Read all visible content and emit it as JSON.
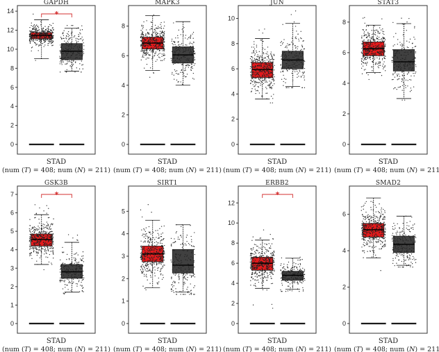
{
  "colors": {
    "tumor": "#e31a1c",
    "normal": "#404040",
    "signif": "#d32f2f",
    "points": "#222222"
  },
  "chart_data": [
    {
      "type": "box",
      "title": "GAPDH",
      "ylim": [
        0,
        14.3
      ],
      "yticks": [
        "0",
        "2",
        "4",
        "6",
        "8",
        "10",
        "12",
        "14"
      ],
      "significant": true,
      "significance_label": "*",
      "tumor": {
        "min": 9.0,
        "q1": 11.1,
        "median": 11.45,
        "q3": 11.75,
        "max": 13.1,
        "spread_min": 8.8,
        "spread_max": 14.0
      },
      "normal": {
        "min": 7.7,
        "q1": 8.9,
        "median": 9.8,
        "q3": 10.6,
        "max": 12.2,
        "spread_min": 7.6,
        "spread_max": 12.5
      },
      "xlabel": "STAD",
      "sublabel": [
        "(num (",
        "T",
        ") = 408; num (",
        "N",
        ") = 211)"
      ]
    },
    {
      "type": "box",
      "title": "MAPK3",
      "ylim": [
        0,
        9.2
      ],
      "yticks": [
        "0",
        "2",
        "4",
        "6",
        "8"
      ],
      "significant": false,
      "significance_label": "",
      "tumor": {
        "min": 5.0,
        "q1": 6.45,
        "median": 6.85,
        "q3": 7.25,
        "max": 8.7,
        "spread_min": 4.4,
        "spread_max": 9.0
      },
      "normal": {
        "min": 4.0,
        "q1": 5.5,
        "median": 6.05,
        "q3": 6.6,
        "max": 8.3,
        "spread_min": 3.9,
        "spread_max": 8.6
      },
      "xlabel": "STAD",
      "sublabel": [
        "(num (",
        "T",
        ") = 408; num (",
        "N",
        ") = 211)"
      ]
    },
    {
      "type": "box",
      "title": "JUN",
      "ylim": [
        0,
        10.8
      ],
      "yticks": [
        "0",
        "2",
        "4",
        "6",
        "8",
        "10"
      ],
      "significant": false,
      "significance_label": "",
      "tumor": {
        "min": 3.6,
        "q1": 5.3,
        "median": 5.95,
        "q3": 6.5,
        "max": 8.4,
        "spread_min": 3.3,
        "spread_max": 9.4
      },
      "normal": {
        "min": 4.6,
        "q1": 6.0,
        "median": 6.7,
        "q3": 7.4,
        "max": 9.6,
        "spread_min": 4.5,
        "spread_max": 10.6
      },
      "xlabel": "STAD",
      "sublabel": [
        "(num (",
        "T",
        ") = 408; num (",
        "N",
        ") = 211)"
      ]
    },
    {
      "type": "box",
      "title": "STAT3",
      "ylim": [
        0,
        8.9
      ],
      "yticks": [
        "0",
        "2",
        "4",
        "6",
        "8"
      ],
      "significant": false,
      "significance_label": "",
      "tumor": {
        "min": 4.7,
        "q1": 5.8,
        "median": 6.25,
        "q3": 6.7,
        "max": 7.8,
        "spread_min": 3.8,
        "spread_max": 8.5
      },
      "normal": {
        "min": 3.0,
        "q1": 4.8,
        "median": 5.4,
        "q3": 6.2,
        "max": 7.9,
        "spread_min": 2.9,
        "spread_max": 8.5
      },
      "xlabel": "STAD",
      "sublabel": [
        "(num (",
        "T",
        ") = 408; num (",
        "N",
        ") = 211)"
      ]
    },
    {
      "type": "box",
      "title": "GSK3B",
      "ylim": [
        0,
        7.3
      ],
      "yticks": [
        "0",
        "1",
        "2",
        "3",
        "4",
        "5",
        "6",
        "7"
      ],
      "significant": true,
      "significance_label": "*",
      "tumor": {
        "min": 3.2,
        "q1": 4.2,
        "median": 4.55,
        "q3": 4.85,
        "max": 5.9,
        "spread_min": 2.9,
        "spread_max": 6.6
      },
      "normal": {
        "min": 1.7,
        "q1": 2.45,
        "median": 2.8,
        "q3": 3.2,
        "max": 4.4,
        "spread_min": 1.6,
        "spread_max": 5.2
      },
      "xlabel": "STAD",
      "sublabel": [
        "(num (",
        "T",
        ") = 408; num (",
        "N",
        ") = 211)"
      ]
    },
    {
      "type": "box",
      "title": "SIRT1",
      "ylim": [
        0,
        6.0
      ],
      "yticks": [
        "0",
        "1",
        "2",
        "3",
        "4",
        "5"
      ],
      "significant": false,
      "significance_label": "",
      "tumor": {
        "min": 1.6,
        "q1": 2.75,
        "median": 3.1,
        "q3": 3.45,
        "max": 4.6,
        "spread_min": 1.5,
        "spread_max": 5.5
      },
      "normal": {
        "min": 1.4,
        "q1": 2.25,
        "median": 2.6,
        "q3": 3.3,
        "max": 4.4,
        "spread_min": 1.3,
        "spread_max": 4.4
      },
      "xlabel": "STAD",
      "sublabel": [
        "(num (",
        "T",
        ") = 408; num (",
        "N",
        ") = 211)"
      ]
    },
    {
      "type": "box",
      "title": "ERBB2",
      "ylim": [
        0,
        13.4
      ],
      "yticks": [
        "0",
        "2",
        "4",
        "6",
        "8",
        "10",
        "12"
      ],
      "significant": true,
      "significance_label": "*",
      "tumor": {
        "min": 3.5,
        "q1": 5.3,
        "median": 6.0,
        "q3": 6.6,
        "max": 8.3,
        "spread_min": 1.4,
        "spread_max": 13.0
      },
      "normal": {
        "min": 3.4,
        "q1": 4.3,
        "median": 4.8,
        "q3": 5.2,
        "max": 6.5,
        "spread_min": 3.2,
        "spread_max": 6.6
      },
      "xlabel": "STAD",
      "sublabel": [
        "(num (",
        "T",
        ") = 408; num (",
        "N",
        ") = 211)"
      ]
    },
    {
      "type": "box",
      "title": "SMAD2",
      "ylim": [
        0,
        7.4
      ],
      "yticks": [
        "0",
        "2",
        "4",
        "6"
      ],
      "significant": false,
      "significance_label": "",
      "tumor": {
        "min": 3.6,
        "q1": 4.75,
        "median": 5.15,
        "q3": 5.5,
        "max": 6.9,
        "spread_min": 2.8,
        "spread_max": 6.9
      },
      "normal": {
        "min": 3.2,
        "q1": 3.9,
        "median": 4.35,
        "q3": 4.8,
        "max": 5.9,
        "spread_min": 3.1,
        "spread_max": 5.9
      },
      "xlabel": "STAD",
      "sublabel": [
        "(num (",
        "T",
        ") = 408; num (",
        "N",
        ") = 211)"
      ]
    }
  ]
}
